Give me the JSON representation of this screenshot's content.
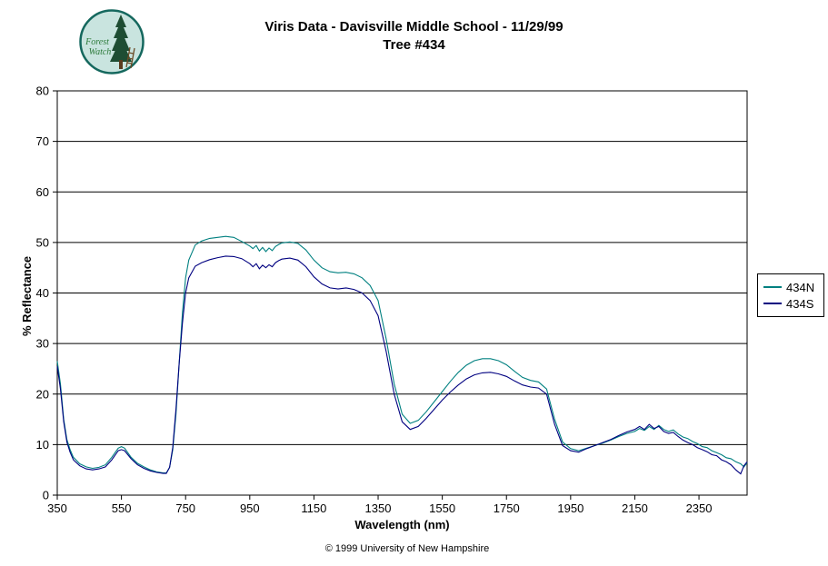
{
  "logo": {
    "line1": "Forest",
    "line2": "Watch"
  },
  "footer": {
    "copyright": "© 1999 University of New Hampshire"
  },
  "chart_data": {
    "type": "line",
    "title": "Viris Data - Davisville Middle School - 11/29/99",
    "subtitle": "Tree #434",
    "xlabel": "Wavelength (nm)",
    "ylabel": "% Reflectance",
    "xlim": [
      350,
      2500
    ],
    "ylim": [
      0,
      80
    ],
    "x_ticks": [
      350,
      550,
      750,
      950,
      1150,
      1350,
      1550,
      1750,
      1950,
      2150,
      2350
    ],
    "y_ticks": [
      0,
      10,
      20,
      30,
      40,
      50,
      60,
      70,
      80
    ],
    "grid": "horizontal",
    "legend_position": "right",
    "x": [
      350,
      360,
      370,
      380,
      390,
      400,
      420,
      440,
      460,
      480,
      500,
      520,
      540,
      550,
      560,
      580,
      600,
      620,
      640,
      660,
      680,
      690,
      700,
      710,
      720,
      730,
      740,
      750,
      760,
      780,
      800,
      825,
      850,
      875,
      900,
      925,
      950,
      960,
      970,
      980,
      990,
      1000,
      1010,
      1020,
      1030,
      1040,
      1050,
      1075,
      1100,
      1125,
      1150,
      1175,
      1200,
      1225,
      1250,
      1275,
      1300,
      1325,
      1350,
      1375,
      1400,
      1425,
      1450,
      1475,
      1500,
      1525,
      1550,
      1575,
      1600,
      1625,
      1650,
      1675,
      1700,
      1725,
      1750,
      1775,
      1800,
      1825,
      1850,
      1875,
      1900,
      1925,
      1950,
      1975,
      2000,
      2025,
      2050,
      2075,
      2100,
      2125,
      2150,
      2165,
      2180,
      2195,
      2210,
      2225,
      2240,
      2255,
      2270,
      2285,
      2300,
      2315,
      2330,
      2345,
      2360,
      2375,
      2390,
      2405,
      2420,
      2435,
      2450,
      2465,
      2480,
      2490,
      2500
    ],
    "series": [
      {
        "name": "434N",
        "color": "#008080",
        "values": [
          26.5,
          22.0,
          15.0,
          11.0,
          9.0,
          7.5,
          6.2,
          5.6,
          5.3,
          5.5,
          6.0,
          7.5,
          9.3,
          9.6,
          9.3,
          7.5,
          6.3,
          5.6,
          5.0,
          4.6,
          4.4,
          4.4,
          5.5,
          9.0,
          16.0,
          26.0,
          36.0,
          43.0,
          46.5,
          49.5,
          50.3,
          50.8,
          51.0,
          51.2,
          51.0,
          50.2,
          49.3,
          48.8,
          49.4,
          48.3,
          49.0,
          48.2,
          48.9,
          48.4,
          49.2,
          49.6,
          49.9,
          50.1,
          49.8,
          48.5,
          46.5,
          45.0,
          44.2,
          44.0,
          44.1,
          43.8,
          43.0,
          41.5,
          38.5,
          31.0,
          22.0,
          16.0,
          14.2,
          14.8,
          16.5,
          18.5,
          20.5,
          22.5,
          24.3,
          25.7,
          26.6,
          27.0,
          27.0,
          26.6,
          25.8,
          24.5,
          23.3,
          22.7,
          22.4,
          21.0,
          15.0,
          10.5,
          9.2,
          8.8,
          9.3,
          9.8,
          10.3,
          10.9,
          11.6,
          12.2,
          12.6,
          13.2,
          12.8,
          13.6,
          13.0,
          13.8,
          13.0,
          12.6,
          12.9,
          12.1,
          11.5,
          11.2,
          10.6,
          10.2,
          9.6,
          9.4,
          8.8,
          8.4,
          8.0,
          7.4,
          7.2,
          6.6,
          6.2,
          5.6,
          6.4
        ]
      },
      {
        "name": "434S",
        "color": "#000080",
        "values": [
          25.5,
          21.0,
          14.5,
          10.5,
          8.5,
          7.0,
          5.8,
          5.2,
          5.0,
          5.2,
          5.6,
          7.0,
          8.8,
          9.0,
          8.8,
          7.2,
          6.0,
          5.3,
          4.8,
          4.5,
          4.3,
          4.3,
          5.5,
          9.5,
          17.0,
          26.0,
          34.0,
          40.0,
          43.0,
          45.3,
          46.0,
          46.6,
          47.0,
          47.3,
          47.2,
          46.8,
          45.8,
          45.2,
          45.8,
          44.8,
          45.5,
          45.0,
          45.6,
          45.2,
          46.0,
          46.4,
          46.7,
          46.9,
          46.5,
          45.2,
          43.2,
          41.8,
          41.0,
          40.8,
          41.0,
          40.7,
          40.0,
          38.5,
          35.5,
          28.5,
          20.0,
          14.5,
          13.0,
          13.6,
          15.2,
          17.0,
          18.8,
          20.4,
          21.8,
          23.0,
          23.8,
          24.2,
          24.3,
          24.0,
          23.5,
          22.6,
          21.8,
          21.4,
          21.2,
          20.0,
          14.0,
          9.8,
          8.8,
          8.5,
          9.2,
          9.8,
          10.4,
          11.0,
          11.8,
          12.5,
          13.0,
          13.6,
          13.0,
          14.0,
          13.2,
          13.6,
          12.6,
          12.2,
          12.4,
          11.6,
          10.9,
          10.4,
          10.0,
          9.4,
          9.0,
          8.6,
          8.0,
          7.8,
          7.0,
          6.6,
          6.0,
          5.0,
          4.2,
          5.8,
          6.6
        ]
      }
    ]
  }
}
